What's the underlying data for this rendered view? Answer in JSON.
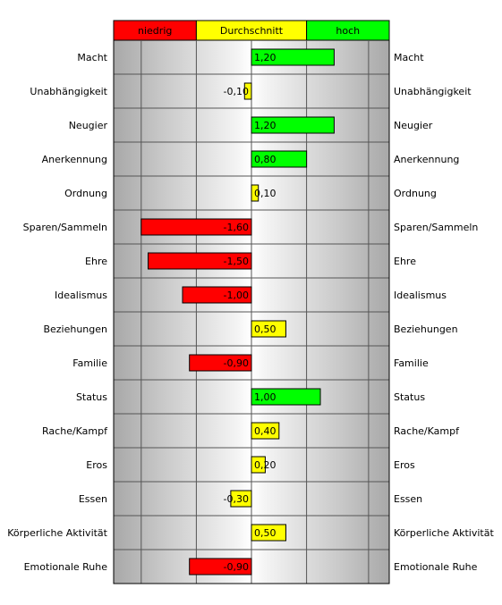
{
  "chart_data": {
    "type": "bar",
    "orientation": "horizontal",
    "title": "",
    "xlim": [
      -2,
      2
    ],
    "bands": [
      {
        "label": "niedrig",
        "from": -2.0,
        "to": -0.8,
        "color": "#ff0000"
      },
      {
        "label": "Durchschnitt",
        "from": -0.8,
        "to": 0.8,
        "color": "#ffff00"
      },
      {
        "label": "hoch",
        "from": 0.8,
        "to": 2.0,
        "color": "#00ff00"
      }
    ],
    "categories": [
      "Macht",
      "Unabhängigkeit",
      "Neugier",
      "Anerkennung",
      "Ordnung",
      "Sparen/Sammeln",
      "Ehre",
      "Idealismus",
      "Beziehungen",
      "Familie",
      "Status",
      "Rache/Kampf",
      "Eros",
      "Essen",
      "Körperliche Aktivität",
      "Emotionale Ruhe"
    ],
    "values": [
      1.2,
      -0.1,
      1.2,
      0.8,
      0.1,
      -1.6,
      -1.5,
      -1.0,
      0.5,
      -0.9,
      1.0,
      0.4,
      0.2,
      -0.3,
      0.5,
      -0.9
    ],
    "value_labels": [
      "1,20",
      "-0,10",
      "1,20",
      "0,80",
      "0,10",
      "-1,60",
      "-1,50",
      "-1,00",
      "0,50",
      "-0,90",
      "1,00",
      "0,40",
      "0,20",
      "-0,30",
      "0,50",
      "-0,90"
    ],
    "gridlines": [
      -1.6,
      -0.8,
      0,
      0.8,
      1.7
    ],
    "colors": {
      "low": "#ff0000",
      "mid": "#ffff00",
      "high": "#00ff00"
    }
  }
}
